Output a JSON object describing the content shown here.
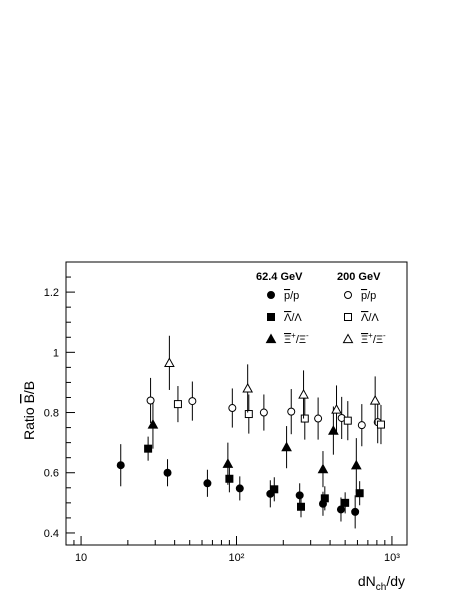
{
  "chart_data": {
    "type": "scatter",
    "xscale": "log",
    "xlim": [
      8,
      1250
    ],
    "ylim": [
      0.36,
      1.3
    ],
    "xlabel": "dN_ch/dy",
    "ylabel": "Ratio B̄/B",
    "x_ticks": [
      {
        "value": 10,
        "label": "10"
      },
      {
        "value": 100,
        "label": "10²"
      },
      {
        "value": 1000,
        "label": "10³"
      }
    ],
    "y_ticks": [
      0.4,
      0.6,
      0.8,
      1.0,
      1.2
    ],
    "y_tick_labels": [
      "0.4",
      "0.6",
      "0.8",
      "1",
      "1.2"
    ],
    "legend": {
      "groups": [
        "62.4 GeV",
        "200 GeV"
      ],
      "labels": [
        "p̄/p",
        "Λ̄/Λ",
        "Ξ̄⁺/Ξ⁻"
      ]
    },
    "series": [
      {
        "energy": "62.4 GeV",
        "particle": "p̄/p",
        "marker": "circle",
        "filled": true,
        "points": [
          [
            18,
            0.625,
            0.07
          ],
          [
            36,
            0.6,
            0.045
          ],
          [
            65,
            0.565,
            0.045
          ],
          [
            105,
            0.548,
            0.04
          ],
          [
            165,
            0.53,
            0.045
          ],
          [
            255,
            0.525,
            0.04
          ],
          [
            360,
            0.497,
            0.04
          ],
          [
            470,
            0.478,
            0.04
          ],
          [
            580,
            0.47,
            0.055
          ]
        ]
      },
      {
        "energy": "62.4 GeV",
        "particle": "Λ̄/Λ",
        "marker": "square",
        "filled": true,
        "points": [
          [
            27,
            0.68,
            0.04
          ],
          [
            90,
            0.58,
            0.045
          ],
          [
            175,
            0.545,
            0.04
          ],
          [
            260,
            0.487,
            0.035
          ],
          [
            370,
            0.515,
            0.04
          ],
          [
            500,
            0.5,
            0.035
          ],
          [
            620,
            0.532,
            0.04
          ]
        ]
      },
      {
        "energy": "62.4 GeV",
        "particle": "Ξ̄⁺/Ξ⁻",
        "marker": "triangle",
        "filled": true,
        "points": [
          [
            29,
            0.76,
            0.08
          ],
          [
            88,
            0.63,
            0.07
          ],
          [
            210,
            0.685,
            0.07
          ],
          [
            360,
            0.612,
            0.06
          ],
          [
            420,
            0.74,
            0.08
          ],
          [
            590,
            0.625,
            0.09
          ]
        ]
      },
      {
        "energy": "200 GeV",
        "particle": "p̄/p",
        "marker": "circle",
        "filled": false,
        "points": [
          [
            28,
            0.84,
            0.075
          ],
          [
            52,
            0.838,
            0.065
          ],
          [
            94,
            0.815,
            0.065
          ],
          [
            150,
            0.8,
            0.06
          ],
          [
            225,
            0.803,
            0.075
          ],
          [
            335,
            0.78,
            0.07
          ],
          [
            475,
            0.782,
            0.07
          ],
          [
            640,
            0.758,
            0.07
          ],
          [
            810,
            0.768,
            0.07
          ]
        ]
      },
      {
        "energy": "200 GeV",
        "particle": "Λ̄/Λ",
        "marker": "square",
        "filled": false,
        "points": [
          [
            42,
            0.828,
            0.06
          ],
          [
            120,
            0.795,
            0.065
          ],
          [
            275,
            0.78,
            0.07
          ],
          [
            520,
            0.773,
            0.065
          ],
          [
            850,
            0.76,
            0.065
          ]
        ]
      },
      {
        "energy": "200 GeV",
        "particle": "Ξ̄⁺/Ξ⁻",
        "marker": "triangle",
        "filled": false,
        "points": [
          [
            37,
            0.965,
            0.09
          ],
          [
            118,
            0.88,
            0.08
          ],
          [
            270,
            0.86,
            0.08
          ],
          [
            440,
            0.81,
            0.08
          ],
          [
            780,
            0.84,
            0.08
          ]
        ]
      }
    ]
  }
}
